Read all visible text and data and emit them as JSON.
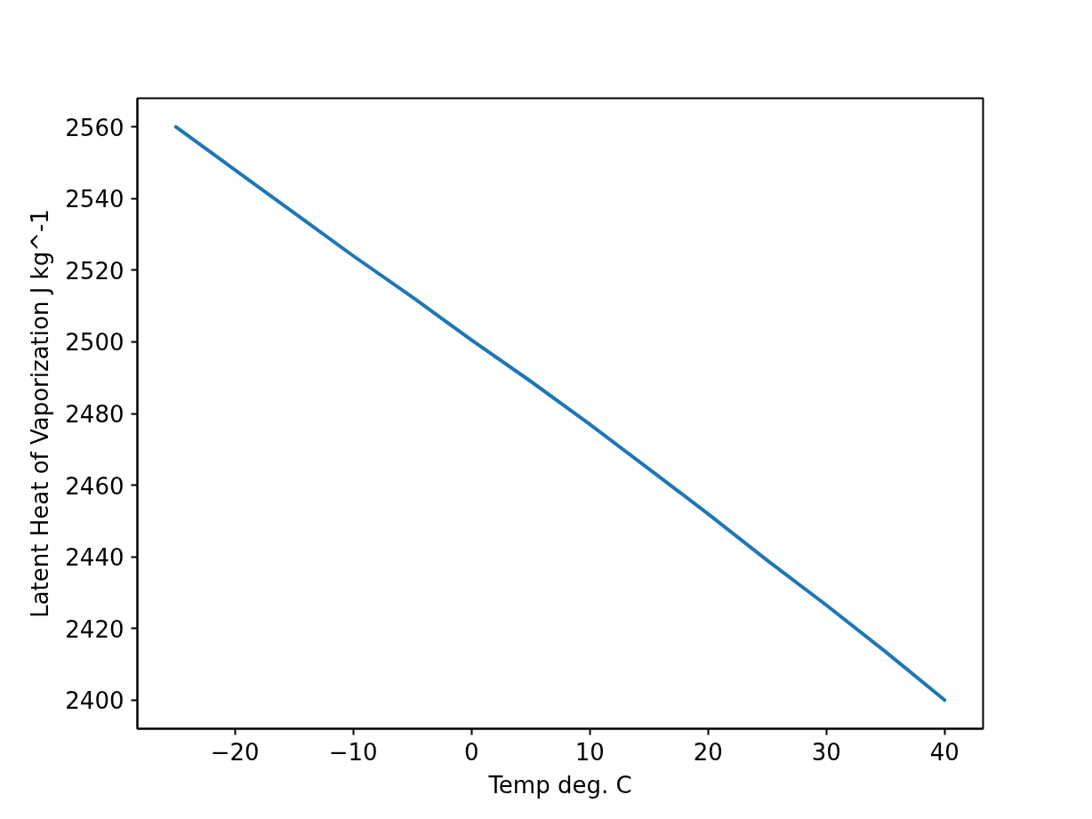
{
  "chart_data": {
    "type": "line",
    "xlabel": "Temp deg. C",
    "ylabel": "Latent Heat of Vaporization J kg^-1",
    "x": [
      -25,
      -20,
      -15,
      -10,
      -5,
      0,
      5,
      10,
      15,
      20,
      25,
      30,
      35,
      40
    ],
    "series": [
      {
        "color": "#1f77b4",
        "values": [
          2560,
          2548,
          2536,
          2524,
          2512.5,
          2500.5,
          2489,
          2477,
          2464.5,
          2452,
          2439,
          2426.5,
          2413.5,
          2400
        ]
      }
    ],
    "xlim": [
      -28.25,
      43.25
    ],
    "ylim": [
      2392,
      2568
    ],
    "xticks": [
      {
        "value": -20,
        "label": "−20"
      },
      {
        "value": -10,
        "label": "−10"
      },
      0,
      10,
      20,
      30,
      40
    ],
    "yticks": [
      2400,
      2420,
      2440,
      2460,
      2480,
      2500,
      2520,
      2540,
      2560
    ],
    "line_style": "solid"
  }
}
